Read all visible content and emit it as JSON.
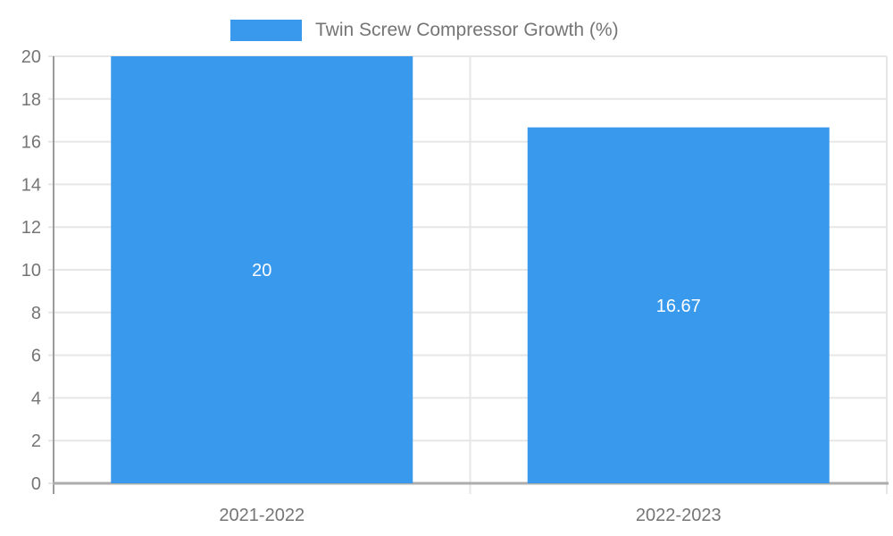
{
  "chart_data": {
    "type": "bar",
    "title": "",
    "legend_label": "Twin Screw Compressor Growth (%)",
    "legend_position": "top",
    "categories": [
      "2021-2022",
      "2022-2023"
    ],
    "series": [
      {
        "name": "Twin Screw Compressor Growth (%)",
        "values": [
          20,
          16.67
        ]
      }
    ],
    "bar_value_labels": [
      "20",
      "16.67"
    ],
    "ylim": [
      0,
      20
    ],
    "yticks": [
      0,
      2,
      4,
      6,
      8,
      10,
      12,
      14,
      16,
      18,
      20
    ],
    "grid": true,
    "colors": {
      "bar": "#3999ED",
      "grid_line": "#E6E6E6",
      "axis_line": "#9B9B9B",
      "baseline": "#ACACAC",
      "tick_text": "#757575",
      "bar_label_text": "#FFFFFF",
      "background": "#FFFFFF"
    }
  }
}
